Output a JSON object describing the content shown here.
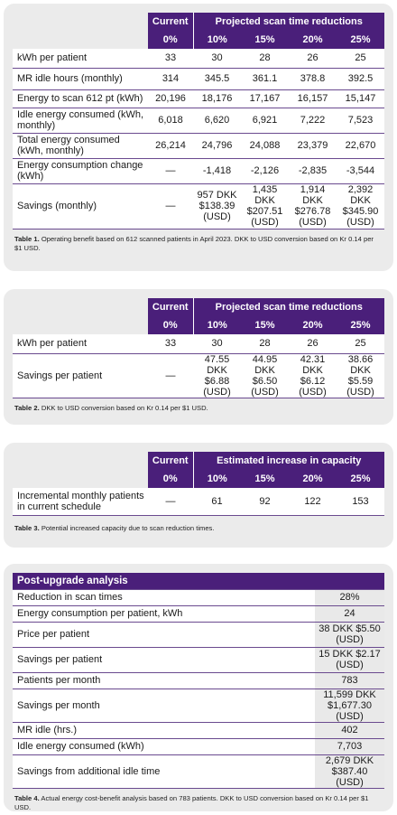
{
  "table1": {
    "current_header": "Current",
    "projected_header": "Projected scan time reductions",
    "pct": [
      "0%",
      "10%",
      "15%",
      "20%",
      "25%"
    ],
    "rows": [
      {
        "label": "kWh per patient",
        "cells": [
          "33",
          "30",
          "28",
          "26",
          "25"
        ]
      },
      {
        "label": "MR idle hours (monthly)",
        "cells": [
          "314",
          "345.5",
          "361.1",
          "378.8",
          "392.5"
        ]
      },
      {
        "label": "Energy to scan 612 pt (kWh)",
        "cells": [
          "20,196",
          "18,176",
          "17,167",
          "16,157",
          "15,147"
        ]
      },
      {
        "label": "Idle energy consumed (kWh, monthly)",
        "cells": [
          "6,018",
          "6,620",
          "6,921",
          "7,222",
          "7,523"
        ]
      },
      {
        "label": "Total energy consumed (kWh, monthly)",
        "cells": [
          "26,214",
          "24,796",
          "24,088",
          "23,379",
          "22,670"
        ]
      },
      {
        "label": "Energy consumption change (kWh)",
        "cells": [
          "—",
          "-1,418",
          "-2,126",
          "-2,835",
          "-3,544"
        ]
      },
      {
        "label": "Savings (monthly)",
        "cells": [
          "—",
          "957 DKK $138.39 (USD)",
          "1,435 DKK $207.51 (USD)",
          "1,914 DKK $276.78 (USD)",
          "2,392 DKK $345.90 (USD)"
        ]
      }
    ],
    "caption_bold": "Table 1.",
    "caption": " Operating benefit based on 612 scanned patients in April 2023. DKK to USD conversion based on Kr 0.14 per $1 USD."
  },
  "table2": {
    "current_header": "Current",
    "projected_header": "Projected scan time reductions",
    "pct": [
      "0%",
      "10%",
      "15%",
      "20%",
      "25%"
    ],
    "rows": [
      {
        "label": "kWh per patient",
        "cells": [
          "33",
          "30",
          "28",
          "26",
          "25"
        ]
      },
      {
        "label": "Savings per patient",
        "cells": [
          "—",
          "47.55 DKK $6.88 (USD)",
          "44.95 DKK $6.50 (USD)",
          "42.31 DKK $6.12 (USD)",
          "38.66 DKK $5.59 (USD)"
        ]
      }
    ],
    "caption_bold": "Table 2.",
    "caption": " DKK to USD conversion based on Kr 0.14 per $1 USD."
  },
  "table3": {
    "current_header": "Current",
    "projected_header": "Estimated increase in capacity",
    "pct": [
      "0%",
      "10%",
      "15%",
      "20%",
      "25%"
    ],
    "rows": [
      {
        "label": "Incremental monthly patients in current schedule",
        "cells": [
          "—",
          "61",
          "92",
          "122",
          "153"
        ]
      }
    ],
    "caption_bold": "Table 3.",
    "caption": " Potential increased capacity due to scan reduction times."
  },
  "table4": {
    "title": "Post-upgrade analysis",
    "rows": [
      {
        "label": "Reduction in scan times",
        "value": "28%"
      },
      {
        "label": "Energy consumption per patient, kWh",
        "value": "24"
      },
      {
        "label": "Price per patient",
        "value": "38 DKK $5.50 (USD)"
      },
      {
        "label": "Savings per patient",
        "value": "15 DKK $2.17 (USD)"
      },
      {
        "label": "Patients per month",
        "value": "783"
      },
      {
        "label": "Savings per month",
        "value": "11,599 DKK $1,677.30 (USD)"
      },
      {
        "label": "MR idle (hrs.)",
        "value": "402"
      },
      {
        "label": "Idle energy consumed (kWh)",
        "value": "7,703"
      },
      {
        "label": "Savings from additional idle time",
        "value": "2,679 DKK $387.40 (USD)"
      }
    ],
    "caption_bold": "Table 4.",
    "caption": " Actual energy cost-benefit analysis based on 783 patients. DKK to USD conversion based on Kr 0.14 per $1 USD."
  }
}
